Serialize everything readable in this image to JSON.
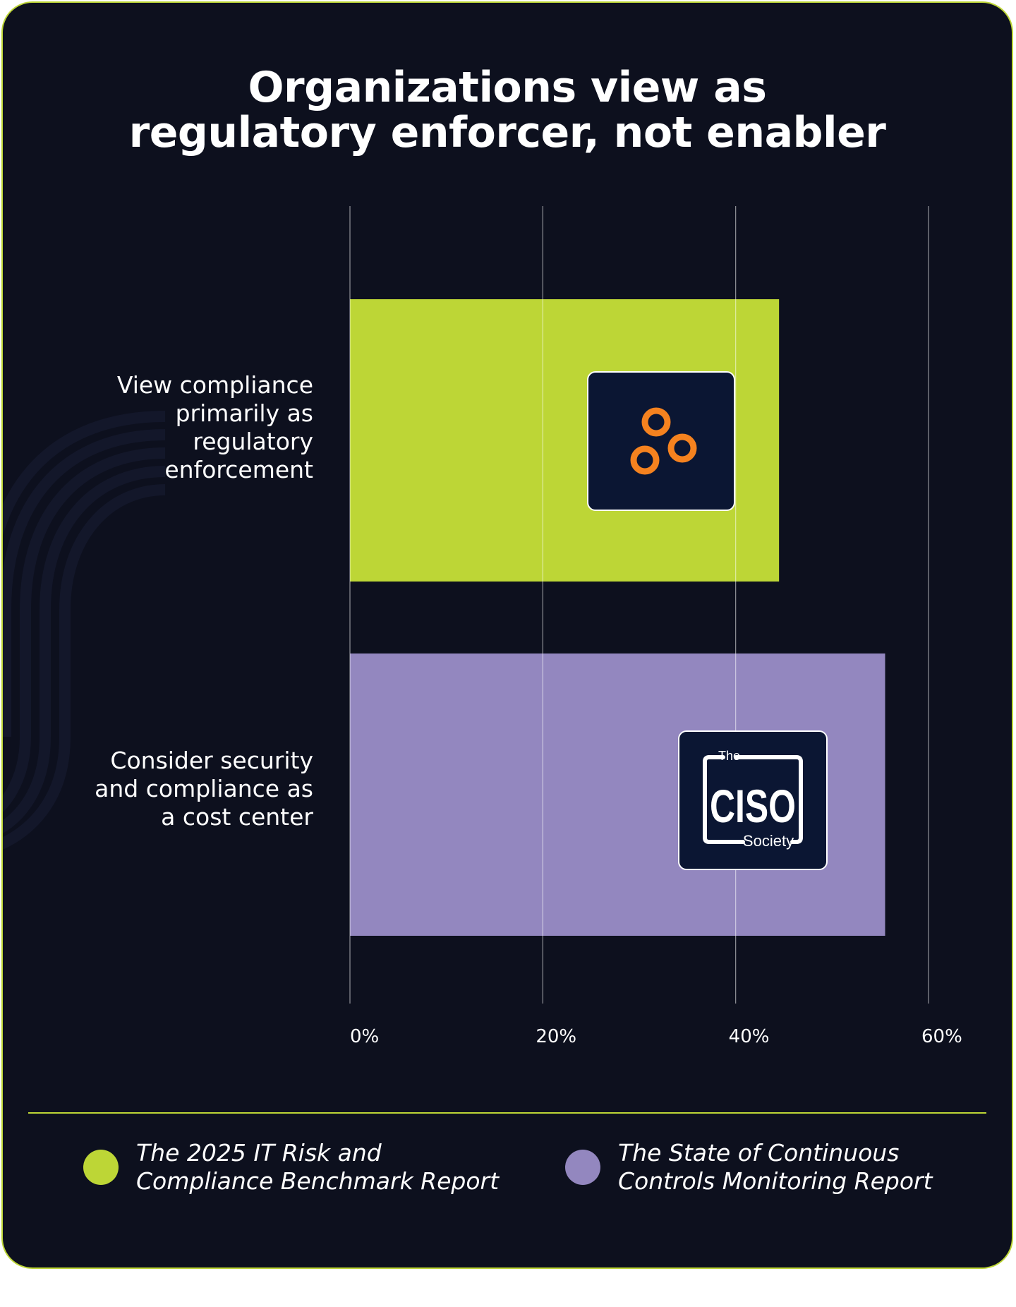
{
  "title_lines": [
    "Organizations view as",
    "regulatory enforcer, not enabler"
  ],
  "chart_data": {
    "type": "bar",
    "orientation": "horizontal",
    "title": "Organizations view as regulatory enforcer, not enabler",
    "categories": [
      "View compliance\nprimarily as\nregulatory\nenforcement",
      "Consider security\nand compliance as\na cost center"
    ],
    "values": [
      44.5,
      55.5
    ],
    "bar_colors": [
      "#bdd636",
      "#9387bf"
    ],
    "series_sources": [
      "The 2025 IT Risk and Compliance Benchmark Report",
      "The State of Continuous Controls Monitoring Report"
    ],
    "xlim": [
      0,
      60
    ],
    "ticks": [
      0,
      20,
      40,
      60
    ],
    "tick_labels": [
      "0%",
      "20%",
      "40%",
      "60%"
    ],
    "grid": true,
    "xlabel": "",
    "ylabel": ""
  },
  "logos": {
    "bar1": {
      "name": "orange-rings-logo"
    },
    "bar2": {
      "name": "ciso-society-logo",
      "text_the": "The",
      "text_ciso": "CISO",
      "text_society": "Society"
    }
  },
  "legend": [
    {
      "text": "The 2025 IT Risk and Compliance Benchmark Report",
      "color": "#bdd636"
    },
    {
      "text": "The State of Continuous Controls Monitoring Report",
      "color": "#9387bf"
    }
  ],
  "colors": {
    "background": "#0d101e",
    "accent": "#bdd636",
    "purple": "#9387bf",
    "logo_bg": "#0b1633",
    "logo_orange": "#f5821f"
  }
}
